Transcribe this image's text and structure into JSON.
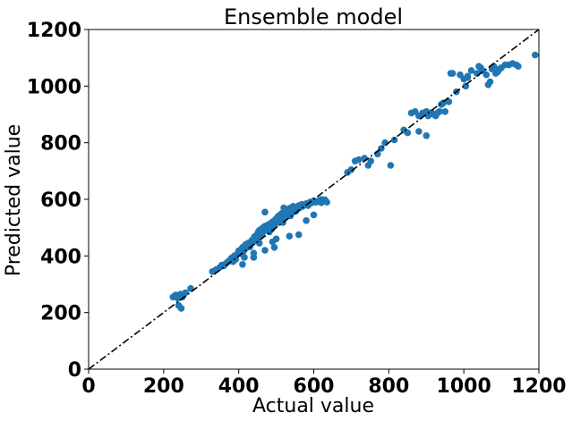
{
  "chart_data": {
    "type": "scatter",
    "title": "Ensemble model",
    "xlabel": "Actual value",
    "ylabel": "Predicted value",
    "xlim": [
      0,
      1200
    ],
    "ylim": [
      0,
      1200
    ],
    "xticks": [
      "0",
      "200",
      "400",
      "600",
      "800",
      "1000",
      "1200"
    ],
    "yticks": [
      "0",
      "200",
      "400",
      "600",
      "800",
      "1000",
      "1200"
    ],
    "grid": false,
    "legend": "none",
    "point_color": "#1f77b4",
    "reference_line": {
      "style": "dash-dot",
      "color": "#000000",
      "x": [
        0,
        1200
      ],
      "y": [
        0,
        1200
      ]
    },
    "x": [
      225,
      232,
      238,
      245,
      250,
      240,
      247,
      252,
      258,
      272,
      330,
      340,
      350,
      355,
      360,
      365,
      370,
      375,
      380,
      385,
      388,
      392,
      395,
      398,
      400,
      402,
      405,
      408,
      410,
      412,
      415,
      418,
      420,
      422,
      425,
      428,
      430,
      432,
      435,
      438,
      440,
      442,
      445,
      448,
      450,
      452,
      455,
      458,
      460,
      462,
      465,
      468,
      470,
      472,
      475,
      478,
      480,
      482,
      485,
      488,
      490,
      492,
      495,
      498,
      500,
      502,
      505,
      508,
      510,
      512,
      515,
      518,
      520,
      522,
      525,
      528,
      530,
      532,
      535,
      538,
      540,
      542,
      545,
      548,
      550,
      552,
      555,
      558,
      560,
      562,
      565,
      568,
      570,
      575,
      580,
      585,
      590,
      595,
      600,
      605,
      610,
      615,
      620,
      625,
      630,
      635,
      385,
      410,
      440,
      470,
      500,
      505,
      520,
      545,
      470,
      490,
      455,
      495,
      535,
      560,
      580,
      440,
      480,
      520,
      415,
      495,
      545,
      600,
      620,
      690,
      700,
      710,
      720,
      735,
      745,
      752,
      770,
      780,
      790,
      805,
      815,
      860,
      870,
      880,
      890,
      900,
      905,
      910,
      915,
      920,
      925,
      930,
      935,
      940,
      945,
      950,
      960,
      970,
      980,
      990,
      1000,
      1005,
      1010,
      1020,
      1035,
      1040,
      1050,
      1060,
      1065,
      1070,
      1075,
      1080,
      1085,
      1090,
      1095,
      1100,
      1110,
      1120,
      1130,
      1140,
      1145,
      1190,
      880,
      965,
      1010,
      1045,
      850,
      900,
      840
    ],
    "y": [
      255,
      262,
      250,
      265,
      255,
      225,
      215,
      260,
      270,
      285,
      345,
      352,
      360,
      368,
      365,
      372,
      378,
      383,
      392,
      395,
      400,
      388,
      405,
      410,
      418,
      412,
      408,
      425,
      430,
      415,
      422,
      440,
      428,
      435,
      445,
      438,
      432,
      450,
      455,
      448,
      460,
      468,
      470,
      462,
      478,
      485,
      490,
      472,
      495,
      480,
      500,
      488,
      505,
      492,
      498,
      510,
      502,
      485,
      515,
      495,
      520,
      508,
      525,
      512,
      532,
      520,
      538,
      528,
      545,
      530,
      550,
      518,
      555,
      535,
      560,
      540,
      562,
      548,
      568,
      542,
      570,
      552,
      575,
      560,
      565,
      558,
      572,
      568,
      578,
      570,
      575,
      582,
      575,
      580,
      585,
      578,
      590,
      588,
      595,
      590,
      592,
      596,
      588,
      594,
      598,
      590,
      380,
      370,
      410,
      420,
      460,
      540,
      570,
      575,
      555,
      450,
      445,
      430,
      470,
      475,
      525,
      395,
      500,
      555,
      395,
      520,
      560,
      545,
      600,
      695,
      705,
      735,
      740,
      745,
      720,
      735,
      760,
      780,
      800,
      720,
      810,
      905,
      910,
      895,
      905,
      910,
      895,
      905,
      905,
      900,
      895,
      905,
      910,
      935,
      940,
      910,
      945,
      1045,
      980,
      1040,
      1025,
      1000,
      1035,
      1055,
      1045,
      1070,
      1055,
      1040,
      1005,
      1015,
      1060,
      1070,
      1045,
      1050,
      1060,
      1065,
      1075,
      1075,
      1080,
      1075,
      1070,
      1110,
      840,
      1045,
      1030,
      1065,
      835,
      825,
      845
    ]
  }
}
